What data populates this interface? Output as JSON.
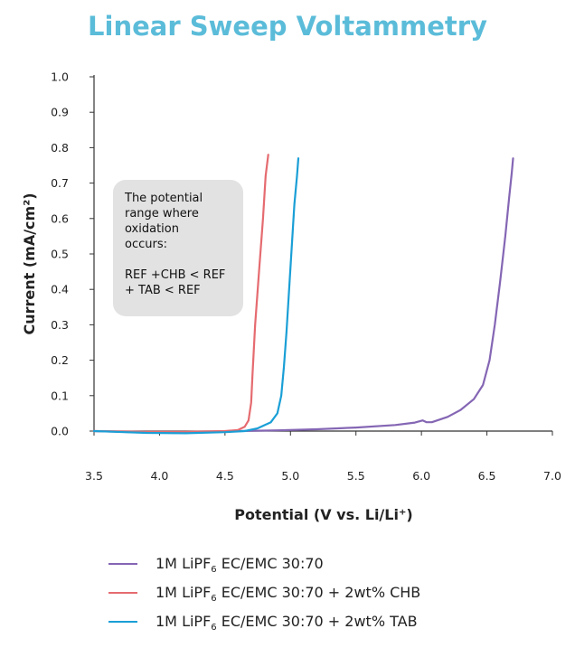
{
  "chart_data": {
    "type": "line",
    "title": "Linear Sweep Voltammetry",
    "xlabel": "Potential (V vs. Li/Li⁺)",
    "ylabel": "Current (mA/cm²)",
    "xlim": [
      3.5,
      7.0
    ],
    "ylim": [
      0.0,
      1.0
    ],
    "xticks": [
      "3.5",
      "4.0",
      "4.5",
      "5.0",
      "5.5",
      "6.0",
      "6.5",
      "7.0"
    ],
    "yticks": [
      "0.0",
      "0.1",
      "0.2",
      "0.3",
      "0.4",
      "0.5",
      "0.6",
      "0.7",
      "0.8",
      "0.9",
      "1.0"
    ],
    "grid": false,
    "legend_placement": "bottom",
    "annotation": "The potential\nrange where\noxidation\noccurs:\n\nREF +CHB < REF\n+ TAB < REF",
    "series": [
      {
        "name": "1M LiPF6 EC/EMC 30:70",
        "legend_main": "1M LiPF",
        "legend_sub": "6",
        "legend_rest": " EC/EMC 30:70",
        "color": "#8466b4",
        "points": [
          [
            3.5,
            0.0
          ],
          [
            3.8,
            -0.003
          ],
          [
            4.1,
            -0.005
          ],
          [
            4.4,
            -0.003
          ],
          [
            4.6,
            0.0
          ],
          [
            4.9,
            0.002
          ],
          [
            5.2,
            0.005
          ],
          [
            5.5,
            0.01
          ],
          [
            5.8,
            0.017
          ],
          [
            5.95,
            0.024
          ],
          [
            6.01,
            0.03
          ],
          [
            6.04,
            0.025
          ],
          [
            6.08,
            0.025
          ],
          [
            6.2,
            0.04
          ],
          [
            6.3,
            0.06
          ],
          [
            6.4,
            0.09
          ],
          [
            6.47,
            0.13
          ],
          [
            6.52,
            0.2
          ],
          [
            6.56,
            0.3
          ],
          [
            6.6,
            0.42
          ],
          [
            6.64,
            0.55
          ],
          [
            6.67,
            0.66
          ],
          [
            6.69,
            0.73
          ],
          [
            6.7,
            0.77
          ]
        ]
      },
      {
        "name": "1M LiPF6 EC/EMC 30:70 + 2wt% CHB",
        "legend_main": "1M LiPF",
        "legend_sub": "6",
        "legend_rest": " EC/EMC 30:70 + 2wt% CHB",
        "color": "#e56b70",
        "points": [
          [
            3.5,
            0.0
          ],
          [
            3.9,
            -0.002
          ],
          [
            4.2,
            -0.002
          ],
          [
            4.5,
            0.0
          ],
          [
            4.6,
            0.003
          ],
          [
            4.65,
            0.012
          ],
          [
            4.68,
            0.03
          ],
          [
            4.7,
            0.08
          ],
          [
            4.71,
            0.16
          ],
          [
            4.73,
            0.3
          ],
          [
            4.76,
            0.45
          ],
          [
            4.79,
            0.6
          ],
          [
            4.81,
            0.72
          ],
          [
            4.83,
            0.78
          ]
        ]
      },
      {
        "name": "1M LiPF6 EC/EMC 30:70 + 2wt% TAB",
        "legend_main": "1M LiPF",
        "legend_sub": "6",
        "legend_rest": " EC/EMC 30:70 + 2wt% TAB",
        "color": "#1a9fd6",
        "points": [
          [
            3.5,
            0.0
          ],
          [
            3.9,
            -0.005
          ],
          [
            4.2,
            -0.006
          ],
          [
            4.5,
            -0.003
          ],
          [
            4.65,
            0.0
          ],
          [
            4.75,
            0.008
          ],
          [
            4.85,
            0.025
          ],
          [
            4.9,
            0.05
          ],
          [
            4.93,
            0.1
          ],
          [
            4.95,
            0.18
          ],
          [
            4.97,
            0.28
          ],
          [
            4.99,
            0.4
          ],
          [
            5.01,
            0.52
          ],
          [
            5.03,
            0.64
          ],
          [
            5.05,
            0.72
          ],
          [
            5.06,
            0.77
          ]
        ]
      }
    ]
  },
  "colors": {
    "title": "#5bbcd9",
    "axis": "#333333",
    "callout_bg": "#e2e2e2"
  }
}
